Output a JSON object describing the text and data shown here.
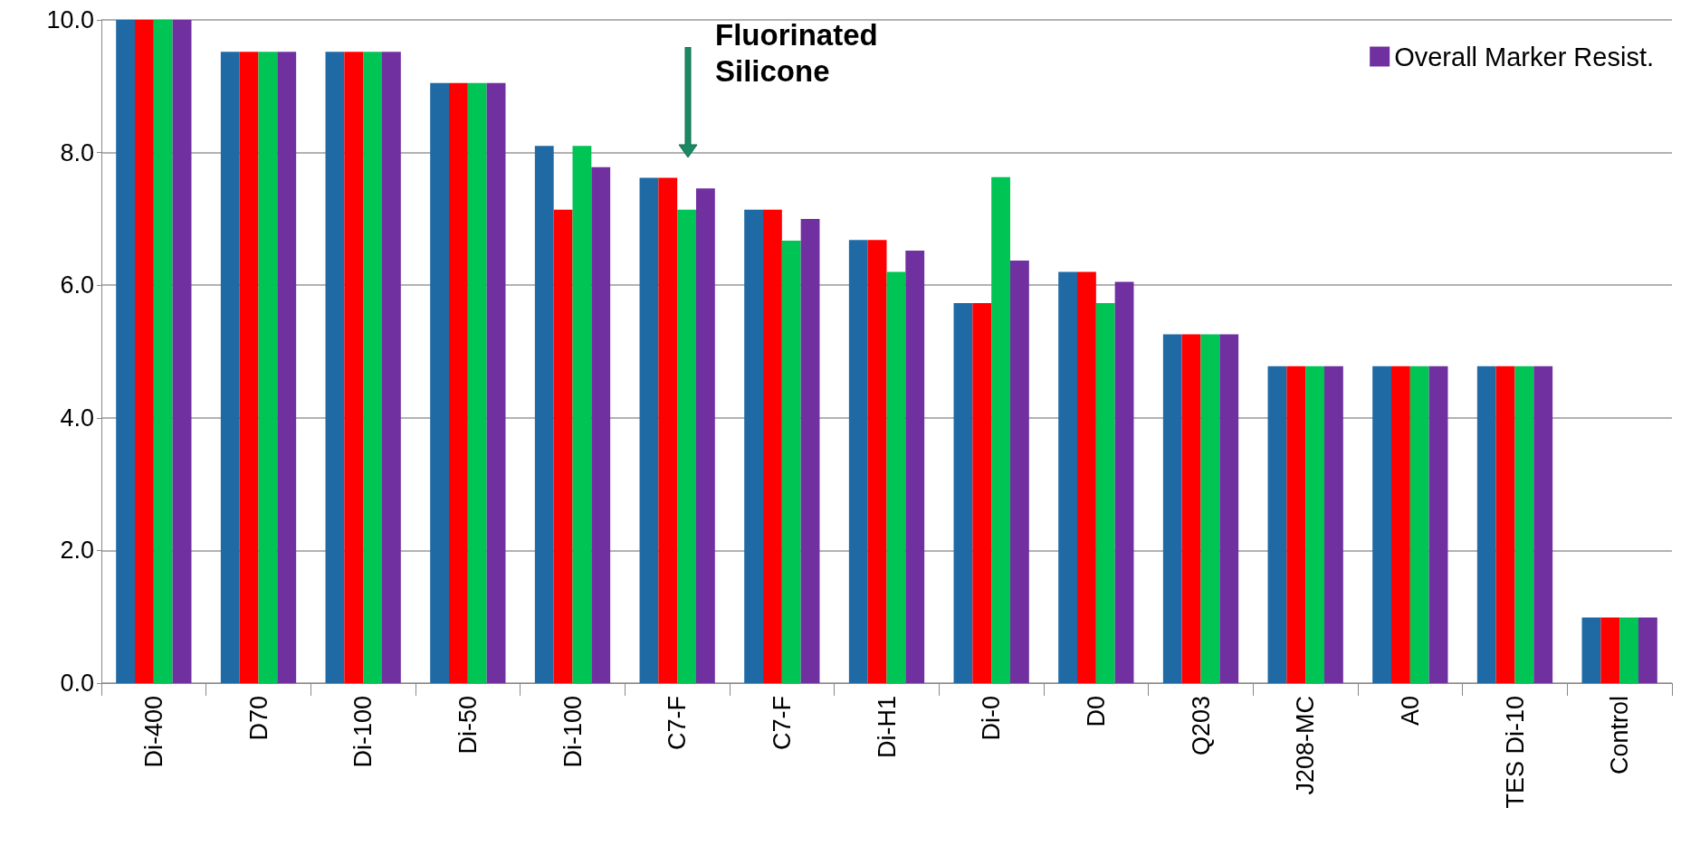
{
  "chart_data": {
    "type": "bar",
    "categories": [
      "Di-400",
      "D70",
      "Di-100",
      "Di-50",
      "Di-100",
      "C7-F",
      "C7-F",
      "Di-H1",
      "Di-0",
      "D0",
      "Q203",
      "J208-MC",
      "A0",
      "TES Di-10",
      "Control"
    ],
    "series": [
      {
        "color": "#1f6aa5",
        "values": [
          10.0,
          9.52,
          9.52,
          9.05,
          8.1,
          7.62,
          7.14,
          6.68,
          5.73,
          6.2,
          5.26,
          4.78,
          4.78,
          4.78,
          0.99
        ]
      },
      {
        "color": "#ff0000",
        "values": [
          10.0,
          9.52,
          9.52,
          9.05,
          7.14,
          7.62,
          7.14,
          6.68,
          5.73,
          6.2,
          5.26,
          4.78,
          4.78,
          4.78,
          0.99
        ]
      },
      {
        "color": "#00c454",
        "values": [
          10.0,
          9.52,
          9.52,
          9.05,
          8.1,
          7.14,
          6.67,
          6.2,
          7.63,
          5.73,
          5.26,
          4.78,
          4.78,
          4.78,
          0.99
        ]
      },
      {
        "name": "Overall Marker Resist.",
        "color": "#7030a0",
        "values": [
          10.0,
          9.52,
          9.52,
          9.05,
          7.78,
          7.46,
          7.0,
          6.52,
          6.37,
          6.05,
          5.26,
          4.78,
          4.78,
          4.78,
          0.99
        ]
      }
    ],
    "ylim": [
      0,
      10
    ],
    "yticks": [
      {
        "value": 0,
        "label": "0.0"
      },
      {
        "value": 2,
        "label": "2.0"
      },
      {
        "value": 4,
        "label": "4.0"
      },
      {
        "value": 6,
        "label": "6.0"
      },
      {
        "value": 8,
        "label": "8.0"
      },
      {
        "value": 10,
        "label": "10.0"
      }
    ],
    "grid": "y",
    "legend": "top right",
    "annotations": [
      "Fluorinated Silicone"
    ]
  }
}
